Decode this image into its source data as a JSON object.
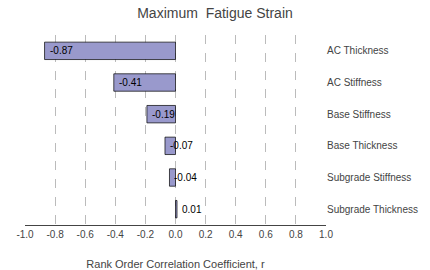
{
  "chart_data": {
    "type": "bar",
    "orientation": "horizontal",
    "title": "Maximum  Fatigue Strain",
    "xlabel": "Rank Order Correlation Coefficient, r",
    "categories": [
      "AC Thickness",
      "AC Stiffness",
      "Base Stiffness",
      "Base Thickness",
      "Subgrade Stiffness",
      "Subgrade Thickness"
    ],
    "values": [
      -0.87,
      -0.41,
      -0.19,
      -0.07,
      -0.04,
      0.01
    ],
    "color": "#9999cc",
    "xlim": [
      -1.0,
      1.0
    ],
    "xticks": [
      {
        "value": -1.0,
        "label": "-1.0"
      },
      -0.8,
      -0.6,
      -0.4,
      -0.2,
      {
        "value": 0.0,
        "label": "0.0"
      },
      0.2,
      0.4,
      0.6,
      0.8,
      {
        "value": 1.0,
        "label": "1.0"
      }
    ],
    "grid": true,
    "data_labels": true
  }
}
